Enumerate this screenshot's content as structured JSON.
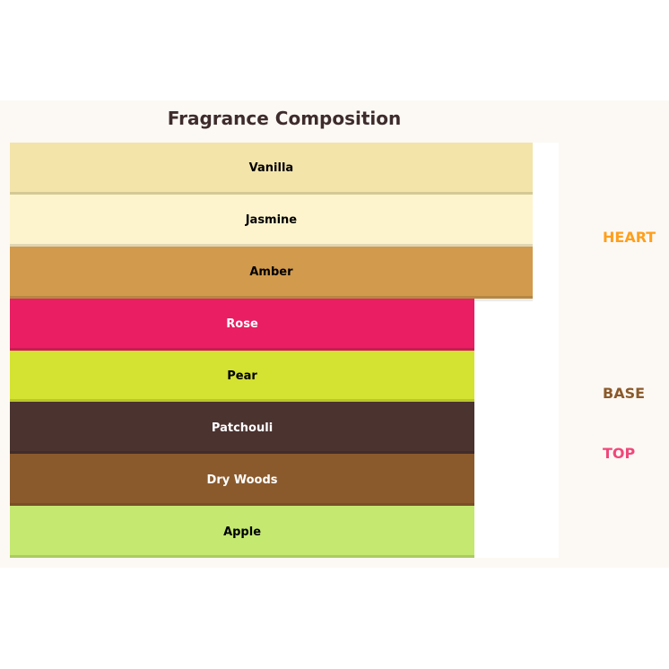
{
  "chart_data": {
    "type": "bar",
    "orientation": "horizontal",
    "title": "Fragrance Composition",
    "categories": [
      "Vanilla",
      "Jasmine",
      "Amber",
      "Rose",
      "Pear",
      "Patchouli",
      "Dry Woods",
      "Apple"
    ],
    "values": [
      9,
      9,
      9,
      8,
      8,
      8,
      8,
      8
    ],
    "colors": [
      "#f3e4aa",
      "#fdf4cd",
      "#d19a4c",
      "#e91e63",
      "#d4e231",
      "#4b3330",
      "#8a5a2d",
      "#c4e870"
    ],
    "label_colors": [
      "#000000",
      "#000000",
      "#000000",
      "#ffffff",
      "#000000",
      "#ffffff",
      "#ffffff",
      "#000000"
    ],
    "xlim": [
      0,
      9.45
    ],
    "grid": false,
    "side_labels": [
      {
        "text": "HEART",
        "color": "#ff9f1c"
      },
      {
        "text": "BASE",
        "color": "#8b5a2b"
      },
      {
        "text": "TOP",
        "color": "#f0477a"
      }
    ]
  }
}
